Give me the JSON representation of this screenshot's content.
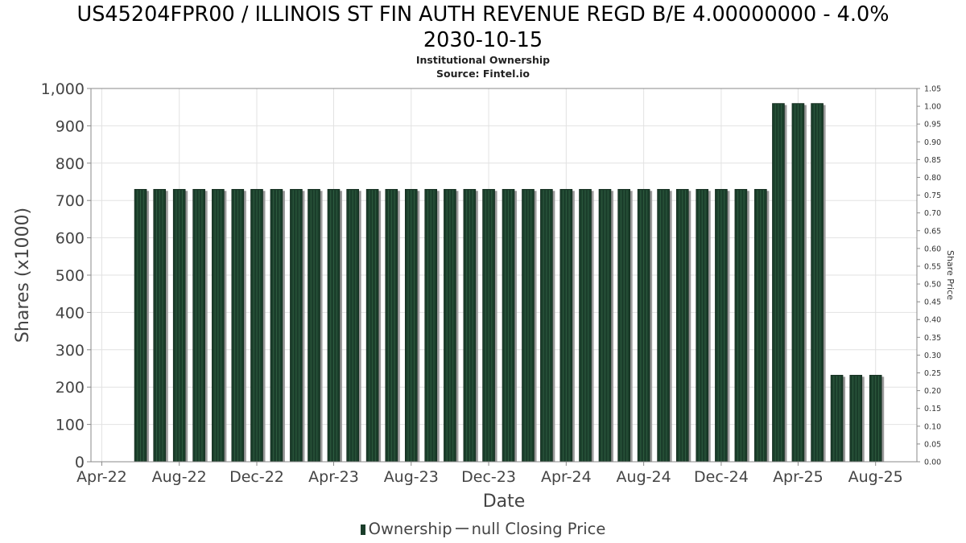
{
  "chart_data": {
    "type": "bar",
    "title_line1": "US45204FPR00 / ILLINOIS ST FIN AUTH REVENUE REGD B/E 4.00000000 - 4.0%",
    "title_line2": "2030-10-15",
    "subtitle": "Institutional Ownership",
    "source": "Source: Fintel.io",
    "xlabel": "Date",
    "ylabel": "Shares (x1000)",
    "y2label": "Share Price",
    "ylim": [
      0,
      1000
    ],
    "y2lim": [
      0,
      1.05
    ],
    "xlim": [
      "2022-03-15",
      "2025-10-05"
    ],
    "yticks": [
      0,
      100,
      200,
      300,
      400,
      500,
      600,
      700,
      800,
      900,
      1000
    ],
    "ytick_labels": [
      "0",
      "100",
      "200",
      "300",
      "400",
      "500",
      "600",
      "700",
      "800",
      "900",
      "1,000"
    ],
    "y2ticks": [
      0.0,
      0.05,
      0.1,
      0.15,
      0.2,
      0.25,
      0.3,
      0.35,
      0.4,
      0.45,
      0.5,
      0.55,
      0.6,
      0.65,
      0.7,
      0.75,
      0.8,
      0.85,
      0.9,
      0.95,
      1.0,
      1.05
    ],
    "y2tick_labels": [
      "0.00",
      "0.05",
      "0.10",
      "0.15",
      "0.20",
      "0.25",
      "0.30",
      "0.35",
      "0.40",
      "0.45",
      "0.50",
      "0.55",
      "0.60",
      "0.65",
      "0.70",
      "0.75",
      "0.80",
      "0.85",
      "0.90",
      "0.95",
      "1.00",
      "1.05"
    ],
    "xticks": [
      {
        "date": "2022-04-01",
        "label": "Apr-22"
      },
      {
        "date": "2022-08-01",
        "label": "Aug-22"
      },
      {
        "date": "2022-12-01",
        "label": "Dec-22"
      },
      {
        "date": "2023-04-01",
        "label": "Apr-23"
      },
      {
        "date": "2023-08-01",
        "label": "Aug-23"
      },
      {
        "date": "2023-12-01",
        "label": "Dec-23"
      },
      {
        "date": "2024-04-01",
        "label": "Apr-24"
      },
      {
        "date": "2024-08-01",
        "label": "Aug-24"
      },
      {
        "date": "2024-12-01",
        "label": "Dec-24"
      },
      {
        "date": "2025-04-01",
        "label": "Apr-25"
      },
      {
        "date": "2025-08-01",
        "label": "Aug-25"
      }
    ],
    "grid": true,
    "legend_placement": "bottom-center",
    "series": [
      {
        "name": "Ownership",
        "color": "#1a3d2a",
        "x": [
          "2022-06-01",
          "2022-07-01",
          "2022-08-01",
          "2022-09-01",
          "2022-10-01",
          "2022-11-01",
          "2022-12-01",
          "2023-01-01",
          "2023-02-01",
          "2023-03-01",
          "2023-04-01",
          "2023-05-01",
          "2023-06-01",
          "2023-07-01",
          "2023-08-01",
          "2023-09-01",
          "2023-10-01",
          "2023-11-01",
          "2023-12-01",
          "2024-01-01",
          "2024-02-01",
          "2024-03-01",
          "2024-04-01",
          "2024-05-01",
          "2024-06-01",
          "2024-07-01",
          "2024-08-01",
          "2024-09-01",
          "2024-10-01",
          "2024-11-01",
          "2024-12-01",
          "2025-01-01",
          "2025-02-01",
          "2025-03-01",
          "2025-04-01",
          "2025-05-01",
          "2025-06-01",
          "2025-07-01",
          "2025-08-01"
        ],
        "values": [
          730,
          730,
          730,
          730,
          730,
          730,
          730,
          730,
          730,
          730,
          730,
          730,
          730,
          730,
          730,
          730,
          730,
          730,
          730,
          730,
          730,
          730,
          730,
          730,
          730,
          730,
          730,
          730,
          730,
          730,
          730,
          730,
          730,
          960,
          960,
          960,
          232,
          232,
          232
        ]
      },
      {
        "name": "null Closing Price",
        "color": "#666666",
        "values": []
      }
    ]
  }
}
